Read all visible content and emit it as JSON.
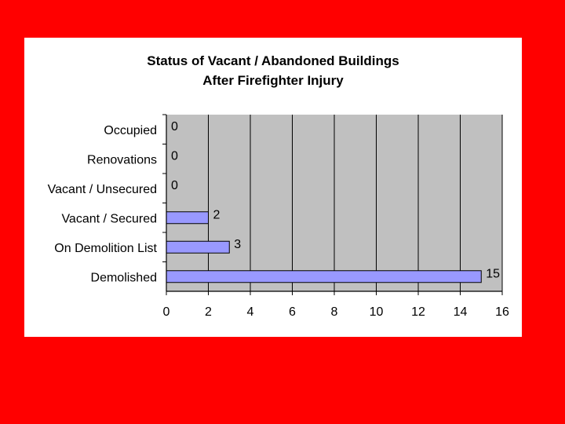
{
  "chart_data": {
    "type": "bar",
    "orientation": "horizontal",
    "title_lines": [
      "Status of Vacant / Abandoned Buildings",
      "After Firefighter Injury"
    ],
    "categories": [
      "Occupied",
      "Renovations",
      "Vacant / Unsecured",
      "Vacant / Secured",
      "On Demolition List",
      "Demolished"
    ],
    "values": [
      0,
      0,
      0,
      2,
      3,
      15
    ],
    "xlim": [
      0,
      16
    ],
    "xticks": [
      "0",
      "2",
      "4",
      "6",
      "8",
      "10",
      "12",
      "14",
      "16"
    ],
    "xlabel": "",
    "ylabel": "",
    "grid": true,
    "data_labels": true,
    "colors": {
      "background": "#ff0000",
      "panel": "#ffffff",
      "plot_area": "#c0c0c0",
      "bar": "#9999ff",
      "bar_outline": "#000000",
      "gridline": "#000000"
    }
  }
}
